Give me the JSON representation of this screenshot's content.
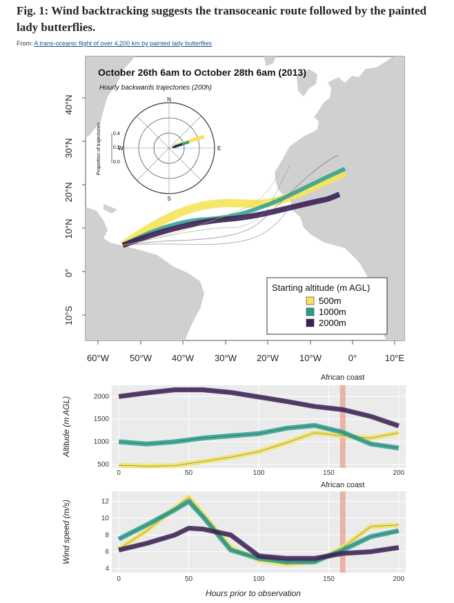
{
  "figure": {
    "title": "Fig. 1: Wind backtracking suggests the transoceanic route followed by the painted lady butterflies.",
    "from_label": "From:",
    "from_link": "A trans-oceanic flight of over 4,200 km by painted lady butterflies"
  },
  "map": {
    "title": "October 26th 6am to October 28th 6am (2013)",
    "subtitle": "Hourly backwards trajectories (200h)",
    "lat_labels": [
      "40°N",
      "30°N",
      "20°N",
      "10°N",
      "0°",
      "10°S"
    ],
    "lon_labels": [
      "60°W",
      "50°W",
      "40°W",
      "30°W",
      "20°W",
      "10°W",
      "0°",
      "10°E"
    ],
    "polar": {
      "ylabel": "Proportion of trajectories",
      "ticks": [
        "0.4",
        "0.2",
        "0.0"
      ],
      "compass": {
        "n": "N",
        "s": "S",
        "e": "E",
        "w": "W"
      }
    },
    "legend": {
      "title": "Starting altitude (m AGL)",
      "items": [
        {
          "label": "500m",
          "color": "#f5e35a"
        },
        {
          "label": "1000m",
          "color": "#2a9d8f"
        },
        {
          "label": "2000m",
          "color": "#3b1f55"
        }
      ]
    },
    "colors": {
      "ocean": "#ffffff",
      "land": "#d0d0d0"
    }
  },
  "chart_data": [
    {
      "type": "line",
      "xlabel": "",
      "ylabel": "Altitude (m AGL)",
      "annotation": "African coast",
      "annotation_x": 160,
      "xlim": [
        -5,
        205
      ],
      "ylim": [
        420,
        2250
      ],
      "xticks": [
        0,
        50,
        100,
        150,
        200
      ],
      "yticks": [
        500,
        1000,
        1500,
        2000
      ],
      "x": [
        0,
        20,
        40,
        60,
        80,
        100,
        120,
        140,
        160,
        180,
        200
      ],
      "series": [
        {
          "name": "500m",
          "color": "#f5e35a",
          "values": [
            480,
            460,
            470,
            560,
            660,
            780,
            980,
            1200,
            1130,
            1080,
            1200
          ]
        },
        {
          "name": "1000m",
          "color": "#2a9d8f",
          "values": [
            1000,
            950,
            1000,
            1080,
            1130,
            1180,
            1300,
            1360,
            1210,
            950,
            860
          ]
        },
        {
          "name": "2000m",
          "color": "#3b1f55",
          "values": [
            2000,
            2080,
            2150,
            2150,
            2090,
            1990,
            1890,
            1780,
            1710,
            1560,
            1350
          ]
        }
      ]
    },
    {
      "type": "line",
      "xlabel": "Hours prior to observation",
      "ylabel": "Wind speed (m/s)",
      "annotation": "African coast",
      "annotation_x": 160,
      "xlim": [
        -5,
        205
      ],
      "ylim": [
        3.5,
        13.2
      ],
      "xticks": [
        0,
        50,
        100,
        150,
        200
      ],
      "yticks": [
        4,
        6,
        8,
        10,
        12
      ],
      "x": [
        0,
        20,
        40,
        50,
        60,
        80,
        100,
        120,
        140,
        160,
        180,
        200
      ],
      "series": [
        {
          "name": "500m",
          "color": "#f5e35a",
          "values": [
            6.3,
            8.5,
            11.2,
            12.5,
            10.5,
            6.5,
            5.0,
            4.5,
            4.8,
            6.5,
            9.0,
            9.2
          ]
        },
        {
          "name": "1000m",
          "color": "#2a9d8f",
          "values": [
            7.5,
            9.2,
            11.0,
            12.0,
            10.2,
            6.2,
            5.2,
            4.8,
            4.8,
            6.2,
            7.8,
            8.5
          ]
        },
        {
          "name": "2000m",
          "color": "#3b1f55",
          "values": [
            6.2,
            7.0,
            8.0,
            8.8,
            8.7,
            8.0,
            5.5,
            5.2,
            5.2,
            5.8,
            6.0,
            6.5
          ]
        }
      ]
    }
  ]
}
